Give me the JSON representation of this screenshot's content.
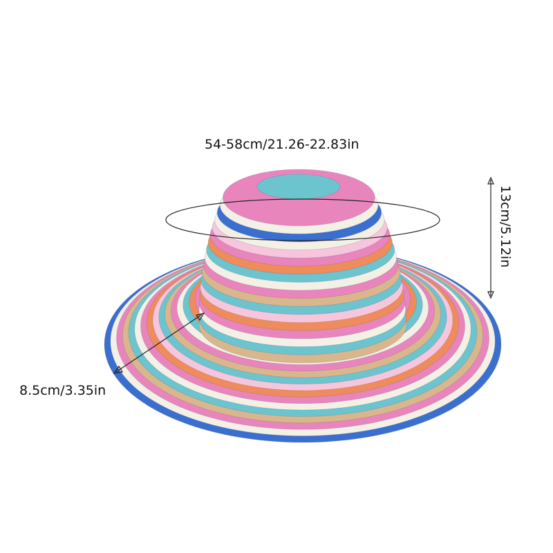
{
  "measurements": {
    "circumference": "54-58cm/21.26-22.83in",
    "height": "13cm/5.12in",
    "brim_width": "8.5cm/3.35in"
  },
  "product": {
    "stripe_colors": [
      "#3a6fd0",
      "#f3f0e6",
      "#e985bd",
      "#ef8c5c",
      "#6cc4cf",
      "#d9b68c",
      "#f6c6dd"
    ]
  }
}
